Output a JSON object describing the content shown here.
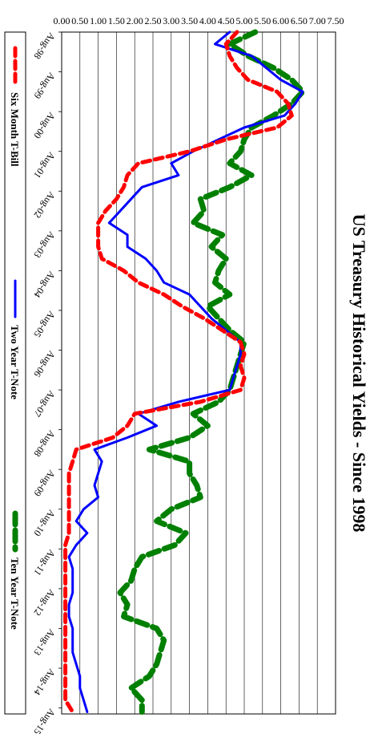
{
  "chart_data": {
    "type": "line",
    "orientation": "rotated-90-clockwise",
    "title": "US Treasury Historical Yields - Since 1998",
    "xlabel": "",
    "ylabel": "",
    "ylim": [
      0,
      7.5
    ],
    "y_ticks": [
      "0.00",
      "0.50",
      "1.00",
      "1.50",
      "2.00",
      "2.50",
      "3.00",
      "3.50",
      "4.00",
      "4.50",
      "5.00",
      "5.50",
      "6.00",
      "6.50",
      "7.00",
      "7.50"
    ],
    "x_ticks": [
      "Aug-98",
      "Aug-99",
      "Aug-00",
      "Aug-01",
      "Aug-02",
      "Aug-03",
      "Aug-04",
      "Aug-05",
      "Aug-06",
      "Aug-07",
      "Aug-08",
      "Aug-09",
      "Aug-10",
      "Aug-11",
      "Aug-12",
      "Aug-13",
      "Aug-14",
      "Aug-15"
    ],
    "x": [
      1998.6,
      1998.9,
      1999.2,
      1999.5,
      1999.8,
      2000.1,
      2000.4,
      2000.7,
      2001.0,
      2001.3,
      2001.6,
      2001.9,
      2002.2,
      2002.5,
      2002.8,
      2003.1,
      2003.4,
      2003.7,
      2004.0,
      2004.3,
      2004.6,
      2004.9,
      2005.2,
      2005.5,
      2005.8,
      2006.1,
      2006.4,
      2006.7,
      2007.0,
      2007.3,
      2007.6,
      2007.9,
      2008.2,
      2008.5,
      2008.8,
      2009.1,
      2009.4,
      2009.7,
      2010.0,
      2010.3,
      2010.6,
      2010.9,
      2011.2,
      2011.5,
      2011.8,
      2012.1,
      2012.4,
      2012.7,
      2013.0,
      2013.3,
      2013.6,
      2013.9,
      2014.2,
      2014.5,
      2014.8,
      2015.1,
      2015.4,
      2015.7
    ],
    "grid": true,
    "legend_position": "bottom",
    "series": [
      {
        "name": "Six Month T-Bill",
        "color": "#ff0000",
        "style": "dashed",
        "values": [
          4.8,
          4.5,
          4.6,
          4.8,
          5.1,
          5.9,
          6.2,
          6.3,
          5.9,
          4.5,
          3.5,
          2.1,
          1.8,
          1.7,
          1.5,
          1.2,
          1.0,
          1.0,
          1.0,
          1.1,
          1.7,
          2.1,
          2.8,
          3.3,
          3.9,
          4.4,
          4.9,
          5.0,
          4.9,
          5.0,
          4.9,
          3.8,
          2.0,
          1.8,
          1.4,
          0.4,
          0.3,
          0.2,
          0.2,
          0.2,
          0.2,
          0.2,
          0.2,
          0.1,
          0.1,
          0.1,
          0.1,
          0.1,
          0.1,
          0.1,
          0.1,
          0.1,
          0.1,
          0.1,
          0.1,
          0.1,
          0.1,
          0.3
        ]
      },
      {
        "name": "Two Year T-Note",
        "color": "#0000ff",
        "style": "solid",
        "values": [
          4.6,
          4.2,
          5.2,
          5.6,
          6.0,
          6.6,
          6.4,
          6.1,
          5.0,
          4.3,
          3.6,
          3.0,
          3.2,
          2.2,
          1.9,
          1.6,
          1.3,
          1.8,
          1.8,
          2.3,
          2.6,
          2.8,
          3.5,
          3.8,
          4.1,
          4.5,
          4.9,
          4.9,
          4.8,
          4.7,
          4.6,
          3.2,
          2.1,
          2.6,
          1.8,
          0.9,
          1.1,
          1.0,
          0.9,
          1.0,
          0.6,
          0.4,
          0.7,
          0.4,
          0.2,
          0.3,
          0.3,
          0.3,
          0.2,
          0.2,
          0.3,
          0.3,
          0.3,
          0.4,
          0.5,
          0.5,
          0.6,
          0.7
        ]
      },
      {
        "name": "Ten Year T-Note",
        "color": "#008000",
        "style": "thick-dashed",
        "values": [
          5.3,
          4.6,
          5.1,
          5.8,
          6.3,
          6.6,
          6.3,
          5.8,
          5.2,
          5.0,
          4.9,
          4.6,
          5.2,
          4.6,
          3.8,
          3.9,
          3.6,
          4.4,
          4.1,
          4.5,
          4.3,
          4.2,
          4.6,
          4.0,
          4.3,
          4.6,
          5.0,
          4.9,
          4.8,
          4.7,
          4.6,
          4.3,
          3.6,
          4.0,
          3.5,
          2.4,
          3.5,
          3.5,
          3.7,
          3.8,
          3.0,
          2.6,
          3.4,
          3.1,
          2.2,
          2.0,
          1.9,
          1.6,
          1.8,
          1.7,
          2.6,
          2.8,
          2.7,
          2.6,
          2.4,
          1.9,
          2.2,
          2.2
        ]
      }
    ]
  }
}
